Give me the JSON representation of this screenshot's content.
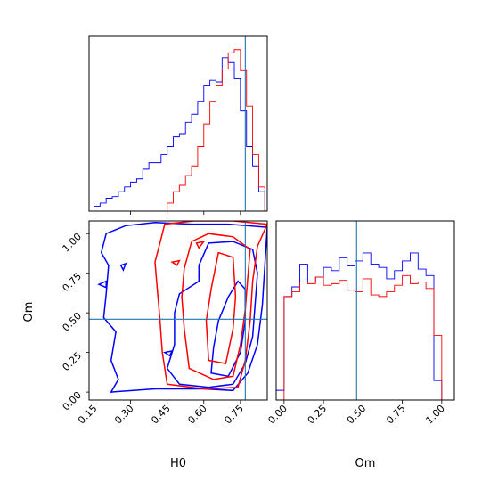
{
  "chart_data": {
    "type": "corner",
    "parameters": [
      "H0",
      "Om"
    ],
    "xlabel_H0": "H0",
    "xlabel_Om": "Om",
    "ylabel_Om": "Om",
    "truth": {
      "H0": 0.77,
      "Om": 0.46
    },
    "ranges": {
      "H0": [
        0.13,
        0.86
      ],
      "Om": [
        -0.05,
        1.08
      ]
    },
    "ticks": {
      "H0": [
        "0.15",
        "0.30",
        "0.45",
        "0.60",
        "0.75"
      ],
      "Om": [
        "0.00",
        "0.25",
        "0.50",
        "0.75",
        "1.00"
      ]
    },
    "series_colors": {
      "blue": "#0000ff",
      "red": "#ff0000",
      "truth": "#1f77b4"
    },
    "hist_H0": {
      "edges": [
        0.15,
        0.175,
        0.2,
        0.225,
        0.25,
        0.275,
        0.3,
        0.325,
        0.35,
        0.375,
        0.4,
        0.425,
        0.45,
        0.475,
        0.5,
        0.525,
        0.55,
        0.575,
        0.6,
        0.625,
        0.65,
        0.675,
        0.7,
        0.725,
        0.75,
        0.775,
        0.8,
        0.825,
        0.85
      ],
      "blue": [
        3,
        5,
        8,
        9,
        12,
        15,
        18,
        20,
        26,
        30,
        30,
        35,
        40,
        46,
        48,
        55,
        60,
        68,
        78,
        81,
        80,
        95,
        92,
        82,
        62,
        40,
        28,
        12
      ],
      "red": [
        0,
        0,
        0,
        0,
        0,
        0,
        0,
        0,
        0,
        0,
        0,
        0,
        5,
        12,
        16,
        22,
        28,
        40,
        54,
        68,
        78,
        88,
        98,
        100,
        87,
        65,
        35,
        15
      ]
    },
    "hist_Om": {
      "edges": [
        -0.05,
        0.0,
        0.05,
        0.1,
        0.15,
        0.2,
        0.25,
        0.3,
        0.35,
        0.4,
        0.45,
        0.5,
        0.55,
        0.6,
        0.65,
        0.7,
        0.75,
        0.8,
        0.85,
        0.9,
        0.95,
        1.0,
        1.05
      ],
      "blue": [
        6,
        64,
        70,
        84,
        73,
        76,
        82,
        80,
        88,
        83,
        86,
        91,
        84,
        82,
        75,
        80,
        86,
        91,
        81,
        77,
        12,
        0
      ],
      "red": [
        0,
        64,
        67,
        73,
        72,
        76,
        71,
        72,
        74,
        68,
        67,
        75,
        65,
        64,
        67,
        71,
        77,
        72,
        73,
        69,
        40,
        0
      ]
    },
    "contours_blue": [
      [
        [
          0.22,
          0.0
        ],
        [
          0.4,
          0.02
        ],
        [
          0.6,
          0.02
        ],
        [
          0.72,
          0.01
        ],
        [
          0.78,
          0.12
        ],
        [
          0.82,
          0.3
        ],
        [
          0.84,
          0.55
        ],
        [
          0.85,
          0.8
        ],
        [
          0.86,
          1.04
        ],
        [
          0.7,
          1.06
        ],
        [
          0.55,
          1.06
        ],
        [
          0.4,
          1.07
        ],
        [
          0.28,
          1.05
        ],
        [
          0.2,
          1.0
        ],
        [
          0.18,
          0.88
        ],
        [
          0.21,
          0.8
        ],
        [
          0.2,
          0.62
        ],
        [
          0.19,
          0.47
        ],
        [
          0.24,
          0.38
        ],
        [
          0.22,
          0.2
        ],
        [
          0.25,
          0.08
        ],
        [
          0.22,
          0.0
        ]
      ],
      [
        [
          0.5,
          0.05
        ],
        [
          0.62,
          0.03
        ],
        [
          0.72,
          0.05
        ],
        [
          0.77,
          0.18
        ],
        [
          0.8,
          0.35
        ],
        [
          0.81,
          0.55
        ],
        [
          0.82,
          0.75
        ],
        [
          0.8,
          0.9
        ],
        [
          0.72,
          0.95
        ],
        [
          0.62,
          0.94
        ],
        [
          0.58,
          0.8
        ],
        [
          0.58,
          0.7
        ],
        [
          0.5,
          0.62
        ],
        [
          0.48,
          0.5
        ],
        [
          0.48,
          0.3
        ],
        [
          0.45,
          0.15
        ],
        [
          0.5,
          0.05
        ]
      ],
      [
        [
          0.63,
          0.12
        ],
        [
          0.7,
          0.1
        ],
        [
          0.75,
          0.25
        ],
        [
          0.77,
          0.45
        ],
        [
          0.77,
          0.65
        ],
        [
          0.74,
          0.7
        ],
        [
          0.7,
          0.6
        ],
        [
          0.66,
          0.45
        ],
        [
          0.64,
          0.28
        ],
        [
          0.63,
          0.12
        ]
      ],
      [
        [
          0.17,
          0.68
        ],
        [
          0.2,
          0.66
        ],
        [
          0.2,
          0.7
        ],
        [
          0.17,
          0.68
        ]
      ],
      [
        [
          0.26,
          0.8
        ],
        [
          0.27,
          0.77
        ],
        [
          0.28,
          0.81
        ],
        [
          0.26,
          0.8
        ]
      ],
      [
        [
          0.44,
          0.25
        ],
        [
          0.46,
          0.23
        ],
        [
          0.47,
          0.26
        ],
        [
          0.44,
          0.25
        ]
      ]
    ],
    "contours_red": [
      [
        [
          0.45,
          0.05
        ],
        [
          0.6,
          0.02
        ],
        [
          0.74,
          0.03
        ],
        [
          0.77,
          0.2
        ],
        [
          0.79,
          0.45
        ],
        [
          0.8,
          0.7
        ],
        [
          0.82,
          0.92
        ],
        [
          0.86,
          1.06
        ],
        [
          0.72,
          1.08
        ],
        [
          0.56,
          1.08
        ],
        [
          0.44,
          1.06
        ],
        [
          0.42,
          0.94
        ],
        [
          0.4,
          0.82
        ],
        [
          0.41,
          0.64
        ],
        [
          0.42,
          0.46
        ],
        [
          0.43,
          0.25
        ],
        [
          0.45,
          0.05
        ]
      ],
      [
        [
          0.54,
          0.15
        ],
        [
          0.64,
          0.08
        ],
        [
          0.72,
          0.1
        ],
        [
          0.75,
          0.3
        ],
        [
          0.77,
          0.52
        ],
        [
          0.78,
          0.72
        ],
        [
          0.79,
          0.9
        ],
        [
          0.72,
          0.98
        ],
        [
          0.62,
          1.0
        ],
        [
          0.55,
          0.95
        ],
        [
          0.52,
          0.78
        ],
        [
          0.51,
          0.6
        ],
        [
          0.52,
          0.4
        ],
        [
          0.54,
          0.15
        ]
      ],
      [
        [
          0.62,
          0.2
        ],
        [
          0.69,
          0.18
        ],
        [
          0.72,
          0.4
        ],
        [
          0.73,
          0.6
        ],
        [
          0.72,
          0.85
        ],
        [
          0.66,
          0.88
        ],
        [
          0.63,
          0.65
        ],
        [
          0.61,
          0.45
        ],
        [
          0.62,
          0.2
        ]
      ],
      [
        [
          0.47,
          0.82
        ],
        [
          0.49,
          0.8
        ],
        [
          0.5,
          0.83
        ],
        [
          0.47,
          0.82
        ]
      ],
      [
        [
          0.57,
          0.94
        ],
        [
          0.58,
          0.91
        ],
        [
          0.6,
          0.95
        ],
        [
          0.57,
          0.94
        ]
      ]
    ]
  }
}
